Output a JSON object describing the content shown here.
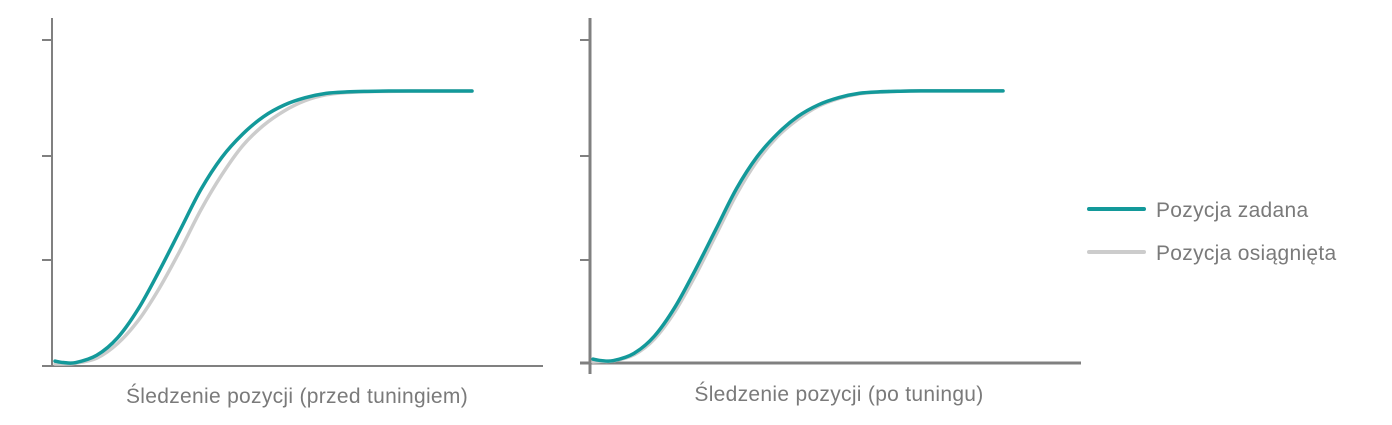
{
  "colors": {
    "setpoint": "#13999a",
    "actual": "#cccccc",
    "axis": "#808080",
    "text": "#7a7a7a"
  },
  "legend": {
    "placement": "right",
    "items": [
      {
        "label": "Pozycja zadana",
        "color": "#13999a"
      },
      {
        "label": "Pozycja osiągnięta",
        "color": "#cccccc"
      }
    ]
  },
  "chart_data": [
    {
      "type": "line",
      "title": "",
      "xlabel": "Śledzenie pozycji (przed tuningiem)",
      "ylabel": "",
      "xlim": [
        0,
        1
      ],
      "ylim": [
        0,
        1
      ],
      "y_ticks": 4,
      "grid": false,
      "series": [
        {
          "name": "Pozycja zadana",
          "x": [
            0,
            0.02,
            0.05,
            0.1,
            0.15,
            0.2,
            0.25,
            0.3,
            0.35,
            0.4,
            0.45,
            0.5,
            0.55,
            0.6,
            0.65,
            0.7,
            0.75,
            0.8,
            0.85,
            0.9,
            0.95,
            1.0
          ],
          "values": [
            0.01,
            0.005,
            0.005,
            0.03,
            0.09,
            0.19,
            0.32,
            0.46,
            0.6,
            0.71,
            0.79,
            0.85,
            0.89,
            0.915,
            0.93,
            0.935,
            0.937,
            0.938,
            0.938,
            0.938,
            0.938,
            0.938
          ]
        },
        {
          "name": "Pozycja osiągnięta",
          "x": [
            0,
            0.02,
            0.05,
            0.1,
            0.15,
            0.2,
            0.25,
            0.3,
            0.35,
            0.4,
            0.45,
            0.5,
            0.55,
            0.6,
            0.65,
            0.7,
            0.75,
            0.8,
            0.85,
            0.9,
            0.95,
            1.0
          ],
          "values": [
            0,
            0.0,
            0.003,
            0.02,
            0.07,
            0.15,
            0.26,
            0.39,
            0.53,
            0.65,
            0.75,
            0.82,
            0.87,
            0.905,
            0.925,
            0.933,
            0.936,
            0.937,
            0.938,
            0.938,
            0.938,
            0.938
          ]
        }
      ]
    },
    {
      "type": "line",
      "title": "",
      "xlabel": "Śledzenie pozycji (po tuningu)",
      "ylabel": "",
      "xlim": [
        0,
        1
      ],
      "ylim": [
        0,
        1
      ],
      "y_ticks": 4,
      "grid": false,
      "series": [
        {
          "name": "Pozycja zadana",
          "x": [
            0,
            0.02,
            0.05,
            0.1,
            0.15,
            0.2,
            0.25,
            0.3,
            0.35,
            0.4,
            0.45,
            0.5,
            0.55,
            0.6,
            0.65,
            0.7,
            0.75,
            0.8,
            0.85,
            0.9,
            0.95,
            1.0
          ],
          "values": [
            0.01,
            0.005,
            0.005,
            0.03,
            0.09,
            0.19,
            0.32,
            0.46,
            0.6,
            0.71,
            0.79,
            0.85,
            0.89,
            0.915,
            0.93,
            0.935,
            0.937,
            0.938,
            0.938,
            0.938,
            0.938,
            0.938
          ]
        },
        {
          "name": "Pozycja osiągnięta",
          "x": [
            0,
            0.02,
            0.05,
            0.1,
            0.15,
            0.2,
            0.25,
            0.3,
            0.35,
            0.4,
            0.45,
            0.5,
            0.55,
            0.6,
            0.65,
            0.7,
            0.75,
            0.8,
            0.85,
            0.9,
            0.95,
            1.0
          ],
          "values": [
            0,
            0.002,
            0.004,
            0.025,
            0.08,
            0.175,
            0.3,
            0.44,
            0.58,
            0.695,
            0.78,
            0.84,
            0.885,
            0.912,
            0.928,
            0.934,
            0.937,
            0.938,
            0.938,
            0.938,
            0.938,
            0.938
          ]
        }
      ]
    }
  ]
}
